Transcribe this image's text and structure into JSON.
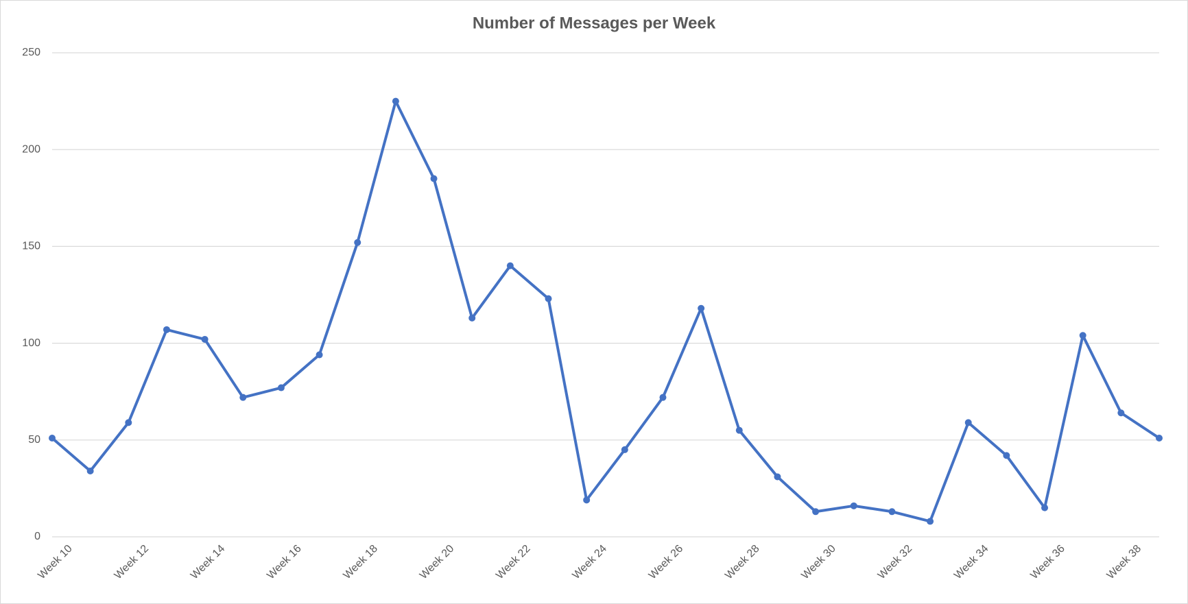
{
  "chart_data": {
    "type": "line",
    "title": "Number of Messages per Week",
    "categories": [
      "Week 10",
      null,
      "Week 12",
      null,
      "Week 14",
      null,
      "Week 16",
      null,
      "Week 18",
      null,
      "Week 20",
      null,
      "Week 22",
      null,
      "Week 24",
      null,
      "Week 26",
      null,
      "Week 28",
      null,
      "Week 30",
      null,
      "Week 32",
      null,
      "Week 34",
      null,
      "Week 36",
      null,
      "Week 38",
      null
    ],
    "series": [
      {
        "name": "Messages",
        "color": "#4472c4",
        "values": [
          51,
          34,
          59,
          107,
          102,
          72,
          77,
          94,
          152,
          225,
          185,
          113,
          140,
          123,
          19,
          45,
          72,
          118,
          55,
          31,
          13,
          16,
          13,
          8,
          59,
          42,
          15,
          104,
          64,
          51
        ]
      }
    ],
    "ylim": [
      0,
      250
    ],
    "yticks": [
      0,
      50,
      100,
      150,
      200,
      250
    ],
    "grid": true
  }
}
